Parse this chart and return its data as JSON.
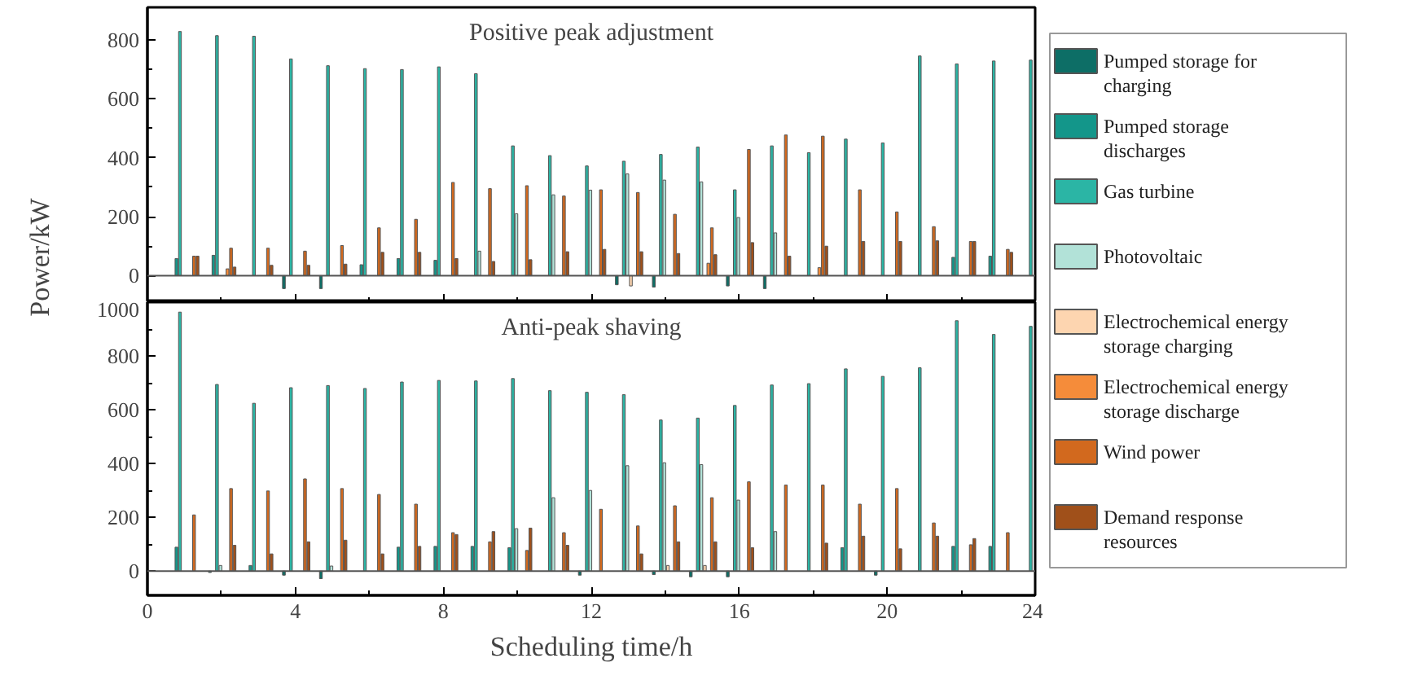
{
  "chart_data": [
    {
      "type": "bar",
      "title": "Positive peak adjustment",
      "ylabel": "Power/kW",
      "x": [
        1,
        2,
        3,
        4,
        5,
        6,
        7,
        8,
        9,
        10,
        11,
        12,
        13,
        14,
        15,
        16,
        17,
        18,
        19,
        20,
        21,
        22,
        23,
        24
      ],
      "xlim": [
        0,
        24
      ],
      "xticks": [
        0,
        4,
        8,
        12,
        16,
        20,
        24
      ],
      "ylim": [
        -90,
        910
      ],
      "yticks": [
        0,
        200,
        400,
        600,
        800
      ],
      "tick_labels": "y",
      "grid": false,
      "legend": "right",
      "ref_lines": [
        {
          "axis": "y",
          "value": 0,
          "color": "#555555"
        }
      ],
      "series": [
        {
          "name": "Pumped storage for charging",
          "color": "#0d6e66",
          "values": [
            null,
            null,
            null,
            -44,
            -44,
            null,
            null,
            null,
            null,
            null,
            null,
            null,
            -31,
            -39,
            null,
            -35,
            -44,
            null,
            null,
            null,
            null,
            null,
            null,
            null
          ]
        },
        {
          "name": "Pumped storage discharges",
          "color": "#13968a",
          "values": [
            58,
            69,
            null,
            null,
            null,
            37,
            58,
            52,
            null,
            null,
            null,
            null,
            null,
            null,
            null,
            null,
            null,
            null,
            null,
            null,
            null,
            62,
            66,
            null
          ]
        },
        {
          "name": "Gas turbine",
          "color": "#2bb5a5",
          "values": [
            828,
            814,
            812,
            735,
            712,
            702,
            699,
            708,
            685,
            440,
            407,
            372,
            388,
            411,
            436,
            291,
            440,
            417,
            463,
            450,
            745,
            718,
            728,
            731
          ]
        },
        {
          "name": "Photovoltaic",
          "color": "#b2e2d8",
          "values": [
            null,
            null,
            null,
            null,
            null,
            null,
            null,
            null,
            83,
            210,
            274,
            290,
            345,
            324,
            318,
            197,
            145,
            null,
            null,
            null,
            null,
            null,
            null,
            null
          ]
        },
        {
          "name": "Electrochemical energy storage charging",
          "color": "#fdd5b0",
          "values": [
            null,
            null,
            null,
            null,
            null,
            null,
            null,
            null,
            null,
            null,
            null,
            null,
            -35,
            null,
            null,
            null,
            null,
            null,
            null,
            null,
            null,
            null,
            null,
            null
          ]
        },
        {
          "name": "Electrochemical energy storage discharge",
          "color": "#f58c3a",
          "values": [
            null,
            23,
            null,
            null,
            null,
            null,
            null,
            null,
            null,
            null,
            null,
            null,
            null,
            null,
            42,
            null,
            null,
            27,
            null,
            null,
            null,
            null,
            null,
            null
          ]
        },
        {
          "name": "Wind power",
          "color": "#d2691e",
          "values": [
            66,
            93,
            93,
            83,
            102,
            162,
            191,
            316,
            295,
            305,
            270,
            291,
            282,
            208,
            162,
            428,
            477,
            473,
            291,
            216,
            166,
            116,
            89,
            null
          ]
        },
        {
          "name": "Demand response resources",
          "color": "#a0501a",
          "values": [
            66,
            29,
            35,
            35,
            39,
            79,
            79,
            58,
            48,
            54,
            81,
            89,
            81,
            75,
            71,
            112,
            66,
            100,
            116,
            116,
            118,
            116,
            79,
            null
          ]
        }
      ]
    },
    {
      "type": "bar",
      "title": "Anti-peak shaving",
      "xlabel": "Scheduling time/h",
      "x": [
        1,
        2,
        3,
        4,
        5,
        6,
        7,
        8,
        9,
        10,
        11,
        12,
        13,
        14,
        15,
        16,
        17,
        18,
        19,
        20,
        21,
        22,
        23,
        24
      ],
      "xlim": [
        0,
        24
      ],
      "xticks": [
        0,
        4,
        8,
        12,
        16,
        20,
        24
      ],
      "ylim": [
        -90,
        1000
      ],
      "yticks": [
        0,
        200,
        400,
        600,
        800,
        1000
      ],
      "grid": false,
      "ref_lines": [
        {
          "axis": "y",
          "value": 0,
          "color": "#555555"
        }
      ],
      "series": [
        {
          "color": "#0d6e66",
          "values": [
            null,
            -5,
            null,
            -15,
            -28,
            null,
            null,
            null,
            null,
            null,
            null,
            -15,
            null,
            -13,
            -21,
            -21,
            null,
            null,
            null,
            -15,
            null,
            null,
            null,
            null
          ]
        },
        {
          "color": "#13968a",
          "values": [
            89,
            null,
            21,
            null,
            null,
            null,
            89,
            92,
            92,
            87,
            null,
            null,
            null,
            null,
            null,
            null,
            null,
            null,
            87,
            null,
            null,
            92,
            92,
            null
          ]
        },
        {
          "color": "#2bb5a5",
          "values": [
            963,
            694,
            624,
            682,
            690,
            679,
            703,
            709,
            707,
            716,
            671,
            665,
            656,
            562,
            569,
            616,
            692,
            697,
            752,
            724,
            756,
            931,
            880,
            910
          ]
        },
        {
          "color": "#b2e2d8",
          "values": [
            null,
            21,
            null,
            null,
            19,
            null,
            null,
            null,
            null,
            158,
            273,
            300,
            392,
            403,
            396,
            264,
            147,
            null,
            null,
            null,
            null,
            null,
            null,
            null
          ]
        },
        {
          "color": "#fdd5b0",
          "values": [
            null,
            null,
            null,
            null,
            null,
            null,
            null,
            null,
            null,
            null,
            null,
            null,
            null,
            21,
            21,
            null,
            null,
            null,
            null,
            null,
            null,
            null,
            null,
            null
          ]
        },
        {
          "color": "#f58c3a",
          "values": [
            null,
            null,
            null,
            null,
            null,
            null,
            null,
            null,
            null,
            null,
            null,
            null,
            null,
            null,
            null,
            null,
            null,
            null,
            null,
            null,
            null,
            null,
            null,
            null
          ]
        },
        {
          "color": "#d2691e",
          "values": [
            209,
            307,
            298,
            343,
            307,
            285,
            249,
            143,
            109,
            77,
            143,
            230,
            168,
            243,
            273,
            332,
            320,
            320,
            249,
            307,
            179,
            98,
            143,
            null
          ]
        },
        {
          "color": "#a0501a",
          "values": [
            null,
            96,
            64,
            109,
            115,
            64,
            92,
            136,
            147,
            160,
            96,
            null,
            64,
            109,
            109,
            87,
            null,
            104,
            130,
            83,
            130,
            121,
            null,
            null
          ]
        }
      ]
    }
  ]
}
